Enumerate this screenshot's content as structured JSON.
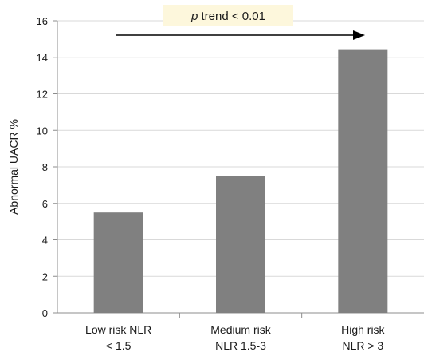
{
  "chart_data": {
    "type": "bar",
    "title": "",
    "xlabel": "",
    "ylabel": "Abnormal UACR %",
    "ylim": [
      0,
      16
    ],
    "yticks": [
      0,
      2,
      4,
      6,
      8,
      10,
      12,
      14,
      16
    ],
    "grid": true,
    "categories": [
      [
        "Low risk NLR",
        "< 1.5"
      ],
      [
        "Medium risk",
        "NLR 1.5-3"
      ],
      [
        "High risk",
        "NLR > 3"
      ]
    ],
    "values": [
      5.5,
      7.5,
      14.4
    ],
    "colors": {
      "bar": "#808080",
      "grid": "#d9d9d9",
      "axis": "#8c8c8c",
      "annotation_bg": "#fdf7dc"
    },
    "annotation": {
      "italic_part": "p",
      "text_part": " trend < 0.01",
      "arrow": "left-to-right"
    }
  }
}
